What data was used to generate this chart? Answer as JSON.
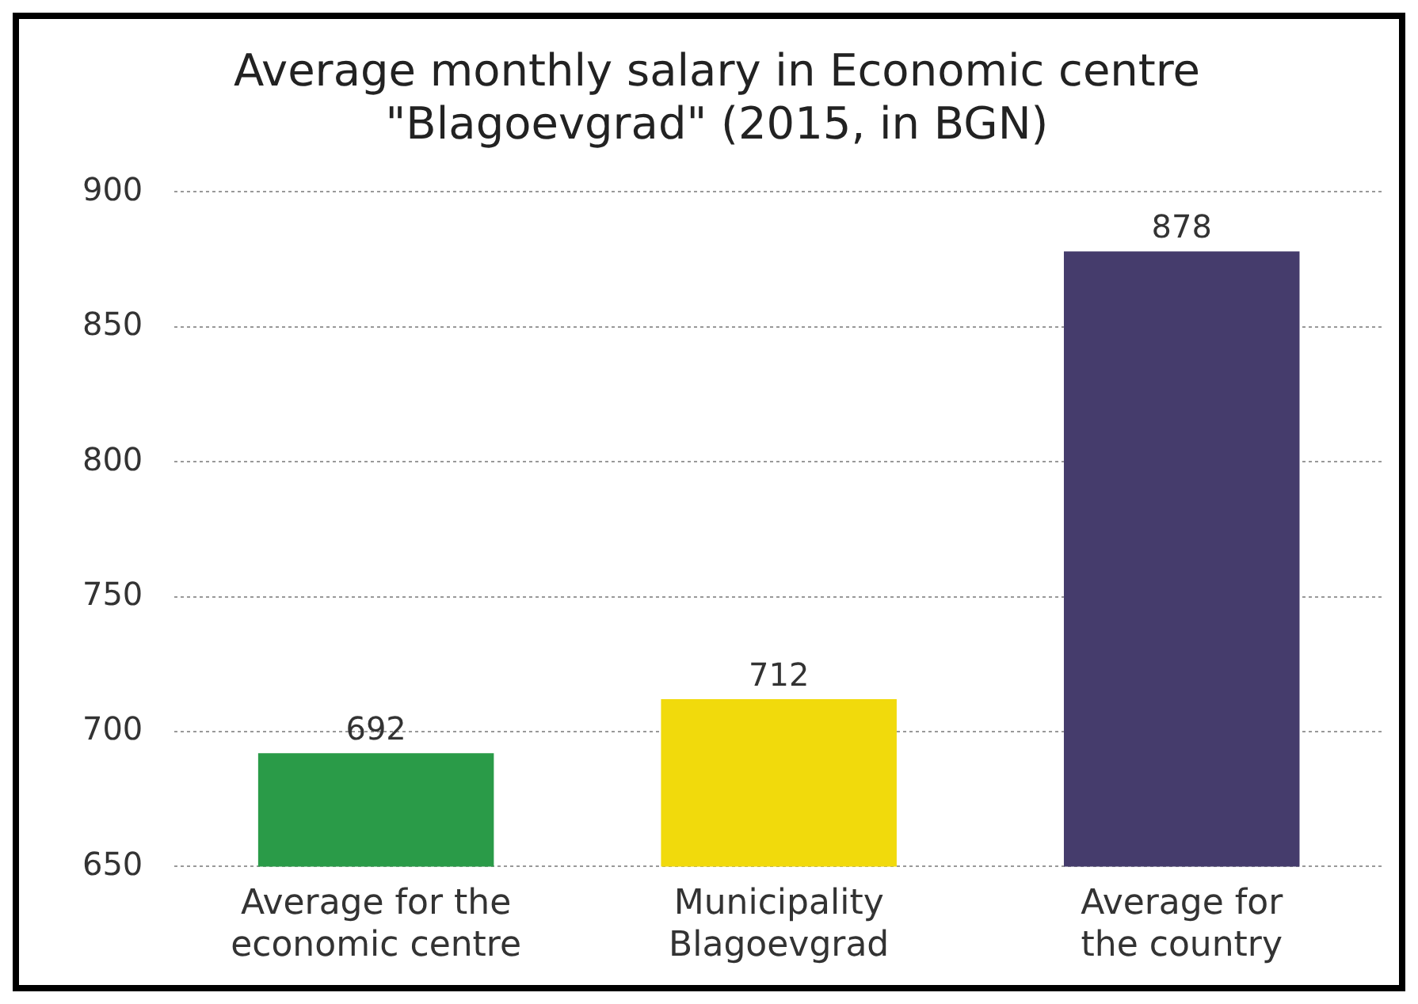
{
  "chart_data": {
    "type": "bar",
    "title": [
      "Average monthly salary in Economic centre",
      "\"Blagoevgrad\" (2015, in BGN)"
    ],
    "categories": [
      "Average for the economic centre",
      "Municipality Blagoevgrad",
      "Average for the country"
    ],
    "values": [
      692,
      712,
      878
    ],
    "colors": [
      "#2a9b48",
      "#f1da0c",
      "#453c6c"
    ],
    "ylim": [
      650,
      900
    ],
    "yticks": [
      650,
      700,
      750,
      800,
      850,
      900
    ],
    "grid": "y",
    "data_labels": true,
    "legend": false
  }
}
